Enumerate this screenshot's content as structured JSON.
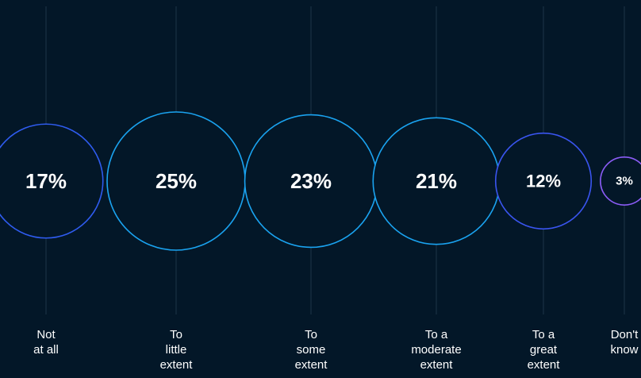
{
  "chart_data": {
    "type": "bubble",
    "title": "",
    "categories": [
      "Not\nat all",
      "To\nlittle\nextent",
      "To\nsome\nextent",
      "To a\nmoderate\nextent",
      "To a\ngreat\nextent",
      "Don't\nknow"
    ],
    "values": [
      17,
      25,
      23,
      21,
      12,
      3
    ],
    "value_labels": [
      "17%",
      "25%",
      "23%",
      "21%",
      "12%",
      "3%"
    ],
    "unit": "%",
    "grid": "vertical lines through each bubble",
    "legend": "none"
  },
  "colors": {
    "background": "#031728",
    "gridline": "#1e3448",
    "text": "#ffffff",
    "bubble_strokes": [
      "#2f5cf0",
      "#1aa3f0",
      "#1aa3f0",
      "#1aa3f0",
      "#3a55f0",
      "#8b5cf6"
    ]
  }
}
